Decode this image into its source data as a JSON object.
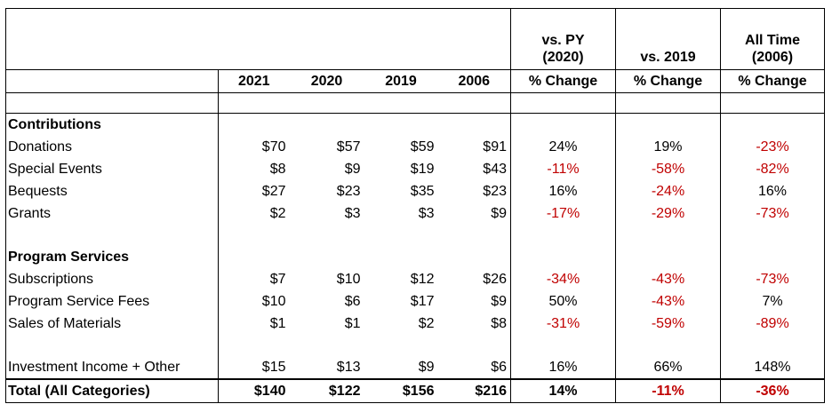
{
  "header": {
    "col_pct1_line1": "vs. PY",
    "col_pct1_line2": "(2020)",
    "col_pct2": "vs. 2019",
    "col_pct3_line1": "All Time",
    "col_pct3_line2": "(2006)",
    "years": [
      "2021",
      "2020",
      "2019",
      "2006"
    ],
    "pct_change": "% Change"
  },
  "sections": {
    "contributions": "Contributions",
    "program_services": "Program Services"
  },
  "rows": {
    "donations": {
      "label": "Donations",
      "v": [
        "$70",
        "$57",
        "$59",
        "$91"
      ],
      "p": [
        "24%",
        "19%",
        "-23%"
      ]
    },
    "special_events": {
      "label": "Special Events",
      "v": [
        "$8",
        "$9",
        "$19",
        "$43"
      ],
      "p": [
        "-11%",
        "-58%",
        "-82%"
      ]
    },
    "bequests": {
      "label": "Bequests",
      "v": [
        "$27",
        "$23",
        "$35",
        "$23"
      ],
      "p": [
        "16%",
        "-24%",
        "16%"
      ]
    },
    "grants": {
      "label": "Grants",
      "v": [
        "$2",
        "$3",
        "$3",
        "$9"
      ],
      "p": [
        "-17%",
        "-29%",
        "-73%"
      ]
    },
    "subscriptions": {
      "label": "Subscriptions",
      "v": [
        "$7",
        "$10",
        "$12",
        "$26"
      ],
      "p": [
        "-34%",
        "-43%",
        "-73%"
      ]
    },
    "program_service_fees": {
      "label": "Program Service Fees",
      "v": [
        "$10",
        "$6",
        "$17",
        "$9"
      ],
      "p": [
        "50%",
        "-43%",
        "7%"
      ]
    },
    "sales_of_materials": {
      "label": "Sales of Materials",
      "v": [
        "$1",
        "$1",
        "$2",
        "$8"
      ],
      "p": [
        "-31%",
        "-59%",
        "-89%"
      ]
    },
    "investment_income": {
      "label": "Investment Income + Other",
      "v": [
        "$15",
        "$13",
        "$9",
        "$6"
      ],
      "p": [
        "16%",
        "66%",
        "148%"
      ]
    },
    "total": {
      "label": "Total (All Categories)",
      "v": [
        "$140",
        "$122",
        "$156",
        "$216"
      ],
      "p": [
        "14%",
        "-11%",
        "-36%"
      ]
    }
  },
  "colors": {
    "negative": "#c00000",
    "positive": "#000000"
  }
}
